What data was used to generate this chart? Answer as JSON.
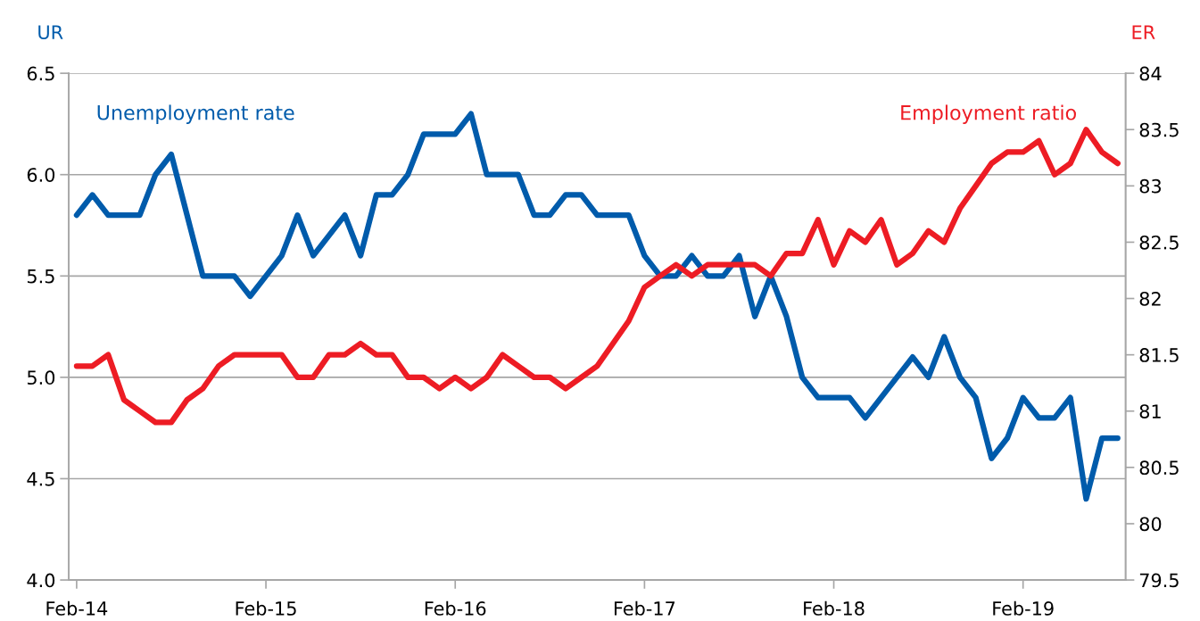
{
  "chart_data": {
    "type": "line",
    "categories": [
      "Feb-14",
      null,
      null,
      null,
      null,
      null,
      null,
      null,
      null,
      null,
      null,
      null,
      "Feb-15",
      null,
      null,
      null,
      null,
      null,
      null,
      null,
      null,
      null,
      null,
      null,
      "Feb-16",
      null,
      null,
      null,
      null,
      null,
      null,
      null,
      null,
      null,
      null,
      null,
      "Feb-17",
      null,
      null,
      null,
      null,
      null,
      null,
      null,
      null,
      null,
      null,
      null,
      "Feb-18",
      null,
      null,
      null,
      null,
      null,
      null,
      null,
      null,
      null,
      null,
      null,
      "Feb-19",
      null,
      null,
      null,
      null,
      null,
      null
    ],
    "ylabel": "UR",
    "y2label": "ER",
    "ylim": [
      4.0,
      6.5
    ],
    "yticks": [
      {
        "value": 4.0,
        "label": "4.0"
      },
      {
        "value": 4.5,
        "label": "4.5"
      },
      {
        "value": 5.0,
        "label": "5.0"
      },
      {
        "value": 5.5,
        "label": "5.5"
      },
      {
        "value": 6.0,
        "label": "6.0"
      },
      {
        "value": 6.5,
        "label": "6.5"
      }
    ],
    "y2lim": [
      79.5,
      84
    ],
    "y2ticks": [
      79.5,
      80,
      80.5,
      81,
      81.5,
      82,
      82.5,
      83,
      83.5,
      84
    ],
    "grid": "y",
    "legend": false,
    "line_style": "solid",
    "marker": "none",
    "series": [
      {
        "name": "Unemployment rate",
        "color": "#005bab",
        "values": [
          5.8,
          5.9,
          5.8,
          5.8,
          5.8,
          6.0,
          6.1,
          5.8,
          5.5,
          5.5,
          5.5,
          5.4,
          5.5,
          5.6,
          5.8,
          5.6,
          5.7,
          5.8,
          5.6,
          5.9,
          5.9,
          6.0,
          6.2,
          6.2,
          6.2,
          6.3,
          6.0,
          6.0,
          6.0,
          5.8,
          5.8,
          5.9,
          5.9,
          5.8,
          5.8,
          5.8,
          5.6,
          5.5,
          5.5,
          5.6,
          5.5,
          5.5,
          5.6,
          5.3,
          5.5,
          5.3,
          5.0,
          4.9,
          4.9,
          4.9,
          4.8,
          4.9,
          5.0,
          5.1,
          5.0,
          5.2,
          5.0,
          4.9,
          4.6,
          4.7,
          4.9,
          4.8,
          4.8,
          4.9,
          4.4,
          4.7,
          4.7
        ]
      },
      {
        "name": "Employment ratio",
        "color": "#ed1c24",
        "axis": "y2",
        "values": [
          81.4,
          81.4,
          81.5,
          81.1,
          81.0,
          80.9,
          80.9,
          81.1,
          81.2,
          81.4,
          81.5,
          81.5,
          81.5,
          81.5,
          81.3,
          81.3,
          81.5,
          81.5,
          81.6,
          81.5,
          81.5,
          81.3,
          81.3,
          81.2,
          81.3,
          81.2,
          81.3,
          81.5,
          81.4,
          81.3,
          81.3,
          81.2,
          81.3,
          81.4,
          81.6,
          81.8,
          82.1,
          82.2,
          82.3,
          82.2,
          82.3,
          82.3,
          82.3,
          82.3,
          82.2,
          82.4,
          82.4,
          82.7,
          82.3,
          82.6,
          82.5,
          82.7,
          82.3,
          82.4,
          82.6,
          82.5,
          82.8,
          83.0,
          83.2,
          83.3,
          83.3,
          83.4,
          83.1,
          83.2,
          83.5,
          83.3,
          83.2
        ]
      }
    ]
  }
}
